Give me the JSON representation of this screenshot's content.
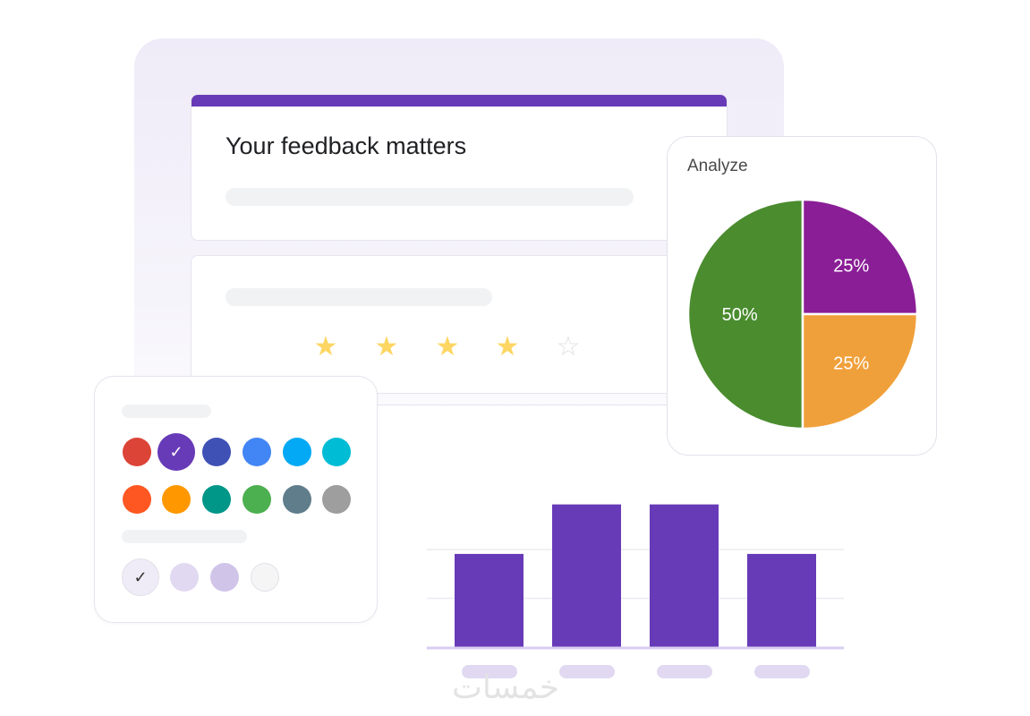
{
  "form": {
    "title": "Your feedback matters",
    "accent_color": "#673ab7"
  },
  "rating": {
    "value": 4,
    "max": 5,
    "filled_color": "#fdd663",
    "empty_color": "#e0e0e0",
    "icon": "star-icon"
  },
  "palette": {
    "theme_colors": [
      "#db4437",
      "#673ab7",
      "#3f51b5",
      "#4285f4",
      "#03a9f4",
      "#00bcd4",
      "#ff5722",
      "#ff9800",
      "#009688",
      "#4caf50",
      "#607d8b",
      "#9e9e9e"
    ],
    "selected_theme_index": 1,
    "background_colors": [
      "#efecf7",
      "#e1d9f1",
      "#d1c4e9",
      "#f5f5f5"
    ],
    "selected_background_index": 0,
    "check_icon": "check-icon"
  },
  "analyze": {
    "title": "Analyze"
  },
  "chart_data": [
    {
      "type": "pie",
      "slices": [
        {
          "label": "50%",
          "value": 50,
          "color": "#4a8c2e"
        },
        {
          "label": "25%",
          "value": 25,
          "color": "#8a1e96"
        },
        {
          "label": "25%",
          "value": 25,
          "color": "#f0a03a"
        }
      ]
    },
    {
      "type": "bar",
      "categories": [
        "",
        "",
        "",
        ""
      ],
      "values": [
        2,
        3,
        3,
        2
      ],
      "ylim": [
        0,
        3
      ],
      "grid": true,
      "bar_color": "#673ab7"
    }
  ],
  "watermark": "خمسات"
}
